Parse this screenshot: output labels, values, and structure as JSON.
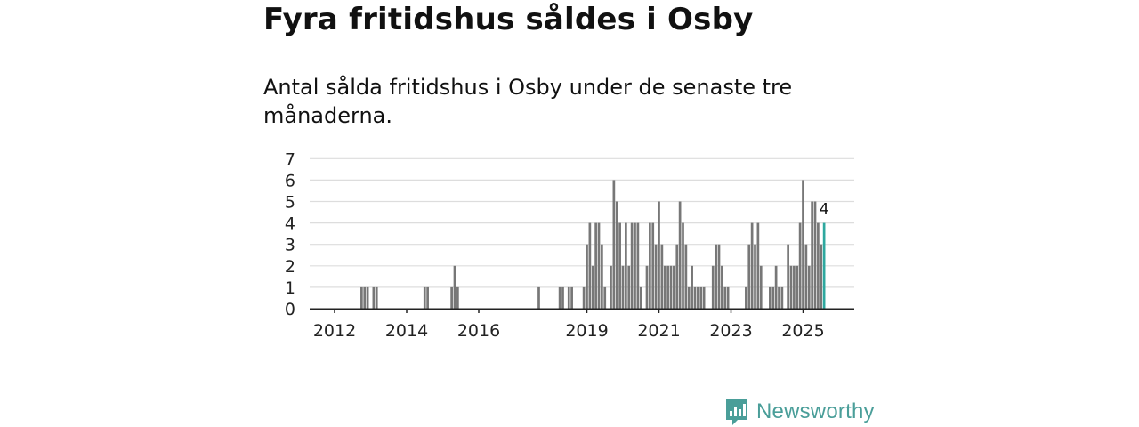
{
  "header": {
    "title": "Fyra fritidshus såldes i Osby",
    "subtitle": "Antal sålda fritidshus i Osby under de senaste tre månaderna."
  },
  "brand": {
    "name": "Newsworthy",
    "icon": "chart-logo-icon",
    "color": "#4a9e99"
  },
  "chart_data": {
    "type": "bar",
    "title": "",
    "xlabel": "",
    "ylabel": "",
    "ylim": [
      0,
      7
    ],
    "yticks": [
      0,
      1,
      2,
      3,
      4,
      5,
      6,
      7
    ],
    "xticks": [
      "2012",
      "2014",
      "2016",
      "2019",
      "2021",
      "2023",
      "2025"
    ],
    "grid": true,
    "bar_color": "#777777",
    "highlight_color": "#2ea89f",
    "highlight_label": "4",
    "series": [
      {
        "x": [
          "2012-04",
          "2012-05",
          "2012-06",
          "2012-07",
          "2012-08",
          "2012-09",
          "2012-10",
          "2012-11",
          "2012-12",
          "2013-01",
          "2013-02",
          "2013-03",
          "2013-04",
          "2013-05",
          "2013-06",
          "2013-07",
          "2013-08",
          "2013-09",
          "2013-10",
          "2013-11",
          "2013-12",
          "2014-01",
          "2014-02",
          "2014-03",
          "2014-04",
          "2014-05",
          "2014-06",
          "2014-07",
          "2014-08",
          "2014-09",
          "2014-10",
          "2014-11",
          "2014-12",
          "2015-01",
          "2015-02",
          "2015-03",
          "2015-04",
          "2015-05",
          "2015-06",
          "2015-07",
          "2015-08",
          "2015-09",
          "2015-10",
          "2015-11",
          "2015-12",
          "2016-01",
          "2016-02",
          "2016-03",
          "2016-04",
          "2016-05",
          "2016-06",
          "2016-07",
          "2016-08",
          "2016-09",
          "2016-10",
          "2016-11",
          "2016-12",
          "2017-01",
          "2017-02",
          "2017-03",
          "2017-04",
          "2017-05",
          "2017-06",
          "2017-07",
          "2017-08",
          "2017-09",
          "2017-10",
          "2017-11",
          "2017-12",
          "2018-01",
          "2018-02",
          "2018-03",
          "2018-04",
          "2018-05",
          "2018-06",
          "2018-07",
          "2018-08",
          "2018-09",
          "2018-10",
          "2018-11",
          "2018-12",
          "2019-01",
          "2019-02",
          "2019-03",
          "2019-04",
          "2019-05",
          "2019-06",
          "2019-07",
          "2019-08",
          "2019-09",
          "2019-10",
          "2019-11",
          "2019-12",
          "2020-01",
          "2020-02",
          "2020-03",
          "2020-04",
          "2020-05",
          "2020-06",
          "2020-07",
          "2020-08",
          "2020-09",
          "2020-10",
          "2020-11",
          "2020-12",
          "2021-01",
          "2021-02",
          "2021-03",
          "2021-04",
          "2021-05",
          "2021-06",
          "2021-07",
          "2021-08",
          "2021-09",
          "2021-10",
          "2021-11",
          "2021-12",
          "2022-01",
          "2022-02",
          "2022-03",
          "2022-04",
          "2022-05",
          "2022-06",
          "2022-07",
          "2022-08",
          "2022-09",
          "2022-10",
          "2022-11",
          "2022-12",
          "2023-01",
          "2023-02",
          "2023-03",
          "2023-04",
          "2023-05",
          "2023-06",
          "2023-07",
          "2023-08",
          "2023-09",
          "2023-10",
          "2023-11",
          "2023-12",
          "2024-01",
          "2024-02",
          "2024-03",
          "2024-04",
          "2024-05",
          "2024-06",
          "2024-07",
          "2024-08",
          "2024-09",
          "2024-10",
          "2024-11",
          "2024-12",
          "2025-01",
          "2025-02",
          "2025-03",
          "2025-04",
          "2025-05",
          "2025-06",
          "2025-07",
          "2025-08"
        ],
        "values": [
          0,
          0,
          0,
          0,
          0,
          0,
          1,
          1,
          1,
          0,
          1,
          1,
          0,
          0,
          0,
          0,
          0,
          0,
          0,
          0,
          0,
          0,
          0,
          0,
          0,
          0,
          0,
          1,
          1,
          0,
          0,
          0,
          0,
          0,
          0,
          0,
          1,
          2,
          1,
          0,
          0,
          0,
          0,
          0,
          0,
          0,
          0,
          0,
          0,
          0,
          0,
          0,
          0,
          0,
          0,
          0,
          0,
          0,
          0,
          0,
          0,
          0,
          0,
          0,
          0,
          1,
          0,
          0,
          0,
          0,
          0,
          0,
          1,
          1,
          0,
          1,
          1,
          0,
          0,
          0,
          1,
          3,
          4,
          2,
          4,
          4,
          3,
          1,
          0,
          2,
          6,
          5,
          4,
          2,
          4,
          2,
          4,
          4,
          4,
          1,
          0,
          2,
          4,
          4,
          3,
          5,
          3,
          2,
          2,
          2,
          2,
          3,
          5,
          4,
          3,
          1,
          2,
          1,
          1,
          1,
          1,
          0,
          0,
          2,
          3,
          3,
          2,
          1,
          1,
          0,
          0,
          0,
          0,
          0,
          1,
          3,
          4,
          3,
          4,
          2,
          0,
          0,
          1,
          1,
          2,
          1,
          1,
          0,
          3,
          2,
          2,
          2,
          4,
          6,
          3,
          2,
          5,
          5,
          4,
          3,
          4
        ]
      }
    ]
  }
}
